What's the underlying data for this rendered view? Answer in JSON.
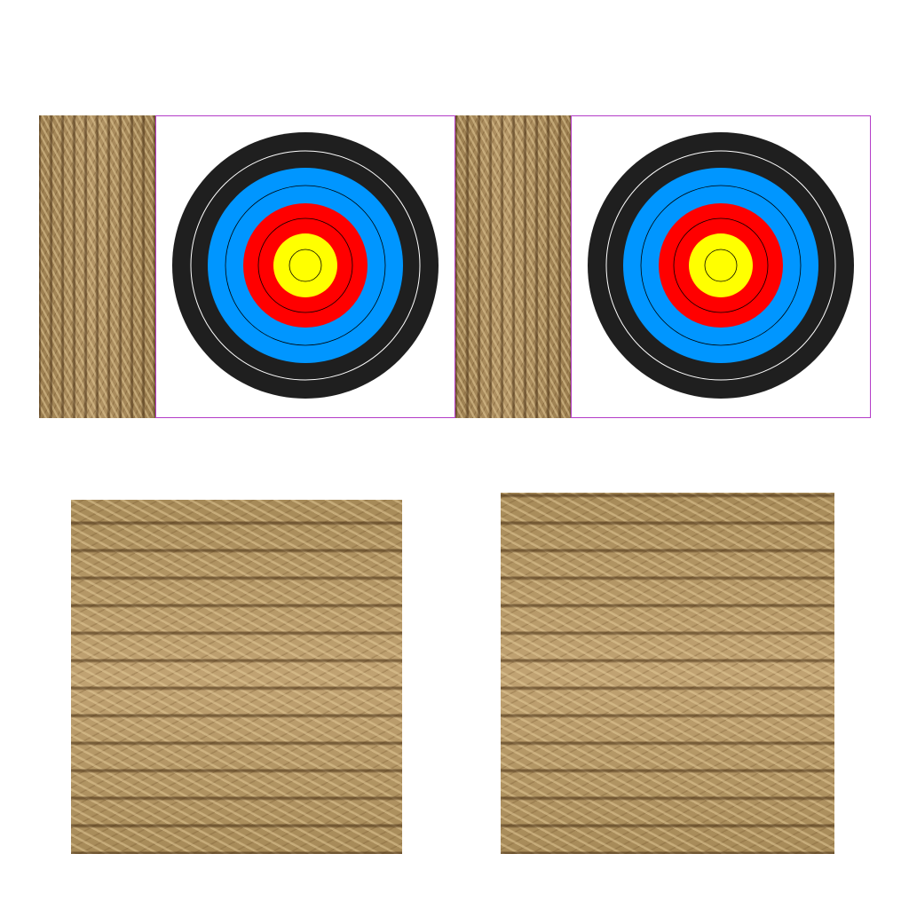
{
  "target_rings": {
    "outer": "#1f1f1f",
    "blue": "#0096ff",
    "red": "#ff0000",
    "gold": "#ffff00",
    "line_light": "#ffffff",
    "line_dark": "#000000"
  },
  "panel_border_color": "#b43cc8",
  "textures": {
    "rope_vertical": "rope-texture-vertical",
    "rope_horizontal": "rope-texture-horizontal"
  }
}
